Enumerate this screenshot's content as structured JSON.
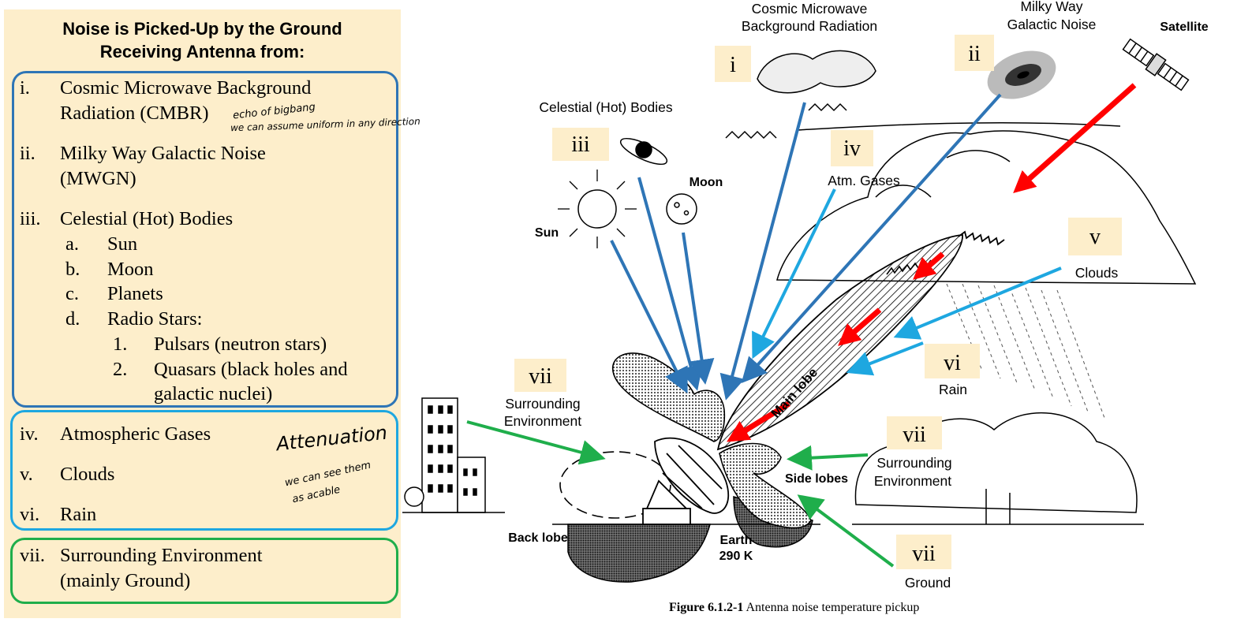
{
  "left_panel": {
    "heading_line1": "Noise is Picked-Up by the Ground",
    "heading_line2": "Receiving Antenna from:",
    "items": [
      {
        "num": "i.",
        "line1": "Cosmic Microwave Background",
        "line2": "Radiation (CMBR)"
      },
      {
        "num": "ii.",
        "line1": "Milky Way Galactic Noise",
        "line2": "(MWGN)"
      },
      {
        "num": "iii.",
        "line1": "Celestial (Hot) Bodies"
      },
      {
        "num": "iv.",
        "line1": "Atmospheric Gases"
      },
      {
        "num": "v.",
        "line1": "Clouds"
      },
      {
        "num": "vi.",
        "line1": "Rain"
      },
      {
        "num": "vii.",
        "line1": "Surrounding Environment",
        "line2": "(mainly Ground)"
      }
    ],
    "sub_items": [
      {
        "num": "a.",
        "text": "Sun"
      },
      {
        "num": "b.",
        "text": "Moon"
      },
      {
        "num": "c.",
        "text": "Planets"
      },
      {
        "num": "d.",
        "text": "Radio Stars:"
      }
    ],
    "sub_sub_items": [
      {
        "num": "1.",
        "text": "Pulsars (neutron stars)"
      },
      {
        "num": "2.",
        "text": "Quasars (black holes and",
        "line2": "galactic nuclei)"
      }
    ],
    "notes": {
      "cmbr_1": "echo of bigbang",
      "cmbr_2": "we can assume uniform in any direction",
      "atten_1": "Attenuation",
      "atten_2": "we can see them",
      "atten_3": "as acable"
    },
    "box_colors": {
      "blue": "#2e75b6",
      "light_blue": "#1ea7e0",
      "green": "#1fae4b",
      "background": "#fdeecb"
    }
  },
  "diagram": {
    "labels": {
      "cmbr_1": "Cosmic Microwave",
      "cmbr_2": "Background Radiation",
      "milky_1": "Milky Way",
      "milky_2": "Galactic Noise",
      "satellite": "Satellite",
      "celestial": "Celestial (Hot) Bodies",
      "moon": "Moon",
      "sun": "Sun",
      "atm": "Atm. Gases",
      "clouds": "Clouds",
      "rain": "Rain",
      "env_1": "Surrounding",
      "env_2": "Environment",
      "main_lobe": "Main lobe",
      "side_lobes": "Side lobes",
      "back_lobe": "Back lobe",
      "earth_1": "Earth",
      "earth_2": "290 K",
      "ground": "Ground"
    },
    "romans": {
      "i": "i",
      "ii": "ii",
      "iii": "iii",
      "iv": "iv",
      "v": "v",
      "vi": "vi",
      "vii_a": "vii",
      "vii_b": "vii",
      "vii_c": "vii"
    },
    "arrow_colors": {
      "dark_blue": "#2e75b6",
      "light_blue": "#1ea7e0",
      "green": "#1fae4b",
      "red": "#ff0000",
      "roman_bg": "#fdeecb"
    }
  },
  "caption": {
    "label": "Figure 6.1.2-1",
    "text": "Antenna noise temperature pickup"
  }
}
